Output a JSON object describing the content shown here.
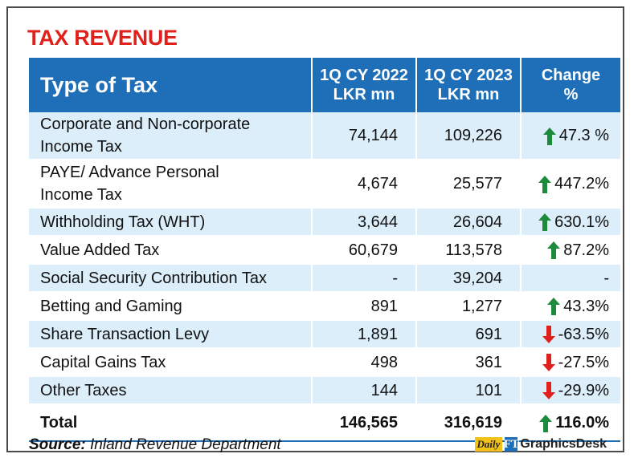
{
  "title": "TAX REVENUE",
  "chart_data": {
    "type": "table",
    "title": "TAX REVENUE",
    "columns": [
      "Type of Tax",
      "1Q CY 2022 LKR mn",
      "1Q CY 2023 LKR mn",
      "Change %"
    ],
    "header": {
      "type": "Type of Tax",
      "y2022_line1": "1Q CY 2022",
      "y2022_line2": "LKR mn",
      "y2023_line1": "1Q CY 2023",
      "y2023_line2": "LKR mn",
      "change_line1": "Change",
      "change_line2": "%"
    },
    "rows": [
      {
        "name_line1": "Corporate and Non-corporate",
        "name_line2": "Income Tax",
        "y2022": "74,144",
        "y2023": "109,226",
        "change": "47.3 %",
        "direction": "up"
      },
      {
        "name_line1": "PAYE/ Advance Personal",
        "name_line2": "Income Tax",
        "y2022": "4,674",
        "y2023": "25,577",
        "change": "447.2%",
        "direction": "up"
      },
      {
        "name_line1": "Withholding Tax (WHT)",
        "name_line2": "",
        "y2022": "3,644",
        "y2023": "26,604",
        "change": "630.1%",
        "direction": "up"
      },
      {
        "name_line1": "Value Added Tax",
        "name_line2": "",
        "y2022": "60,679",
        "y2023": "113,578",
        "change": "87.2%",
        "direction": "up"
      },
      {
        "name_line1": "Social Security Contribution Tax",
        "name_line2": "",
        "y2022": "-",
        "y2023": "39,204",
        "change": "-",
        "direction": "none"
      },
      {
        "name_line1": "Betting and Gaming",
        "name_line2": "",
        "y2022": "891",
        "y2023": "1,277",
        "change": "43.3%",
        "direction": "up"
      },
      {
        "name_line1": "Share Transaction Levy",
        "name_line2": "",
        "y2022": "1,891",
        "y2023": "691",
        "change": "-63.5%",
        "direction": "down"
      },
      {
        "name_line1": "Capital Gains Tax",
        "name_line2": "",
        "y2022": "498",
        "y2023": "361",
        "change": "-27.5%",
        "direction": "down"
      },
      {
        "name_line1": "Other Taxes",
        "name_line2": "",
        "y2022": "144",
        "y2023": "101",
        "change": "-29.9%",
        "direction": "down"
      }
    ],
    "total": {
      "name": "Total",
      "y2022": "146,565",
      "y2023": "316,619",
      "change": "116.0%",
      "direction": "up"
    }
  },
  "source": {
    "label": "Source:",
    "text": "Inland Revenue Department"
  },
  "logo": {
    "daily": "Daily",
    "mark": "FT",
    "text": "GraphicsDesk"
  },
  "colors": {
    "title": "#e0201b",
    "header_bg": "#1f6fb8",
    "row_shade": "#dceefa",
    "arrow_up": "#1e8a3c",
    "arrow_down": "#e0201b"
  },
  "icons": {
    "up": "arrow-up-icon",
    "down": "arrow-down-icon"
  }
}
